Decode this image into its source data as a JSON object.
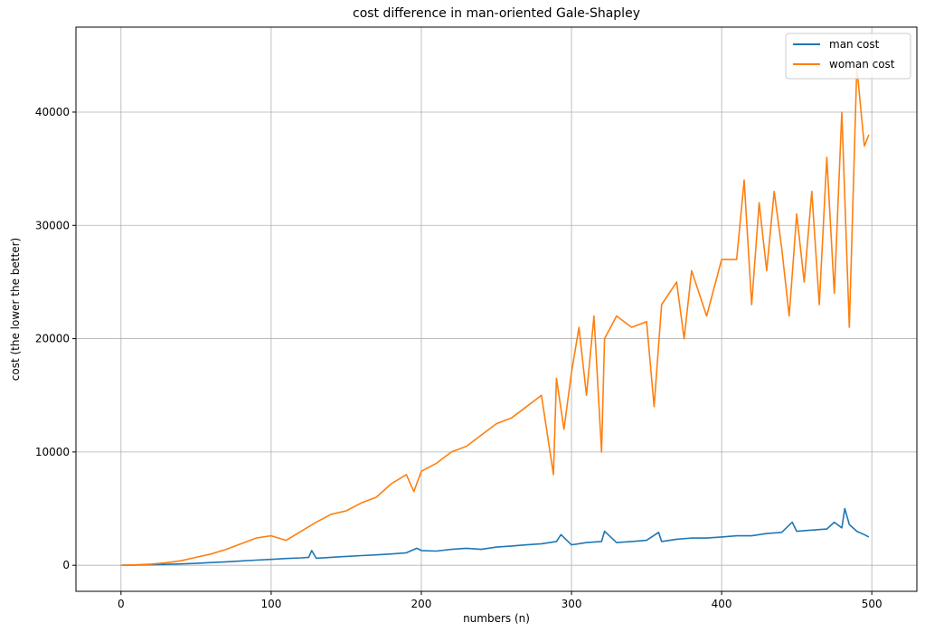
{
  "chart_data": {
    "type": "line",
    "title": "cost difference in man-oriented Gale-Shapley",
    "xlabel": "numbers (n)",
    "ylabel": "cost (the lower the better)",
    "xlim": [
      -30,
      530
    ],
    "ylim": [
      -2300,
      47500
    ],
    "xticks": [
      0,
      100,
      200,
      300,
      400,
      500
    ],
    "yticks": [
      0,
      10000,
      20000,
      30000,
      40000
    ],
    "grid": true,
    "legend_position": "top-right",
    "series": [
      {
        "name": "man cost",
        "color": "#1f77b4",
        "x": [
          0,
          10,
          20,
          30,
          40,
          50,
          60,
          70,
          80,
          90,
          100,
          110,
          120,
          125,
          127,
          130,
          140,
          150,
          160,
          170,
          180,
          190,
          197,
          200,
          210,
          220,
          230,
          240,
          250,
          260,
          270,
          280,
          290,
          293,
          300,
          310,
          320,
          322,
          330,
          340,
          350,
          358,
          360,
          370,
          380,
          390,
          400,
          410,
          420,
          430,
          440,
          447,
          450,
          460,
          470,
          475,
          480,
          482,
          485,
          490,
          495,
          498
        ],
        "y": [
          0,
          20,
          50,
          80,
          120,
          170,
          240,
          300,
          380,
          450,
          520,
          600,
          650,
          700,
          1300,
          620,
          700,
          780,
          850,
          920,
          1000,
          1100,
          1500,
          1300,
          1250,
          1400,
          1500,
          1400,
          1600,
          1700,
          1800,
          1900,
          2100,
          2700,
          1800,
          2000,
          2100,
          3000,
          2000,
          2100,
          2200,
          2900,
          2100,
          2300,
          2400,
          2400,
          2500,
          2600,
          2600,
          2800,
          2900,
          3800,
          3000,
          3100,
          3200,
          3800,
          3300,
          5000,
          3600,
          3000,
          2700,
          2500
        ]
      },
      {
        "name": "woman cost",
        "color": "#ff7f0e",
        "x": [
          0,
          10,
          20,
          30,
          40,
          50,
          60,
          70,
          80,
          90,
          100,
          110,
          120,
          130,
          140,
          150,
          160,
          170,
          180,
          190,
          195,
          200,
          210,
          220,
          230,
          240,
          250,
          260,
          270,
          280,
          288,
          290,
          295,
          300,
          305,
          310,
          315,
          320,
          322,
          330,
          340,
          350,
          355,
          360,
          370,
          375,
          380,
          390,
          400,
          410,
          415,
          420,
          425,
          430,
          435,
          440,
          445,
          450,
          455,
          460,
          465,
          470,
          475,
          480,
          485,
          490,
          495,
          498
        ],
        "y": [
          0,
          40,
          100,
          220,
          400,
          700,
          1000,
          1400,
          1900,
          2400,
          2600,
          2200,
          3000,
          3800,
          4500,
          4800,
          5500,
          6000,
          7200,
          8000,
          6500,
          8300,
          9000,
          10000,
          10500,
          11500,
          12500,
          13000,
          14000,
          15000,
          8000,
          16500,
          12000,
          17000,
          21000,
          15000,
          22000,
          10000,
          20000,
          22000,
          21000,
          21500,
          14000,
          23000,
          25000,
          20000,
          26000,
          22000,
          27000,
          27000,
          34000,
          23000,
          32000,
          26000,
          33000,
          28000,
          22000,
          31000,
          25000,
          33000,
          23000,
          36000,
          24000,
          40000,
          21000,
          44000,
          37000,
          38000
        ]
      }
    ]
  }
}
